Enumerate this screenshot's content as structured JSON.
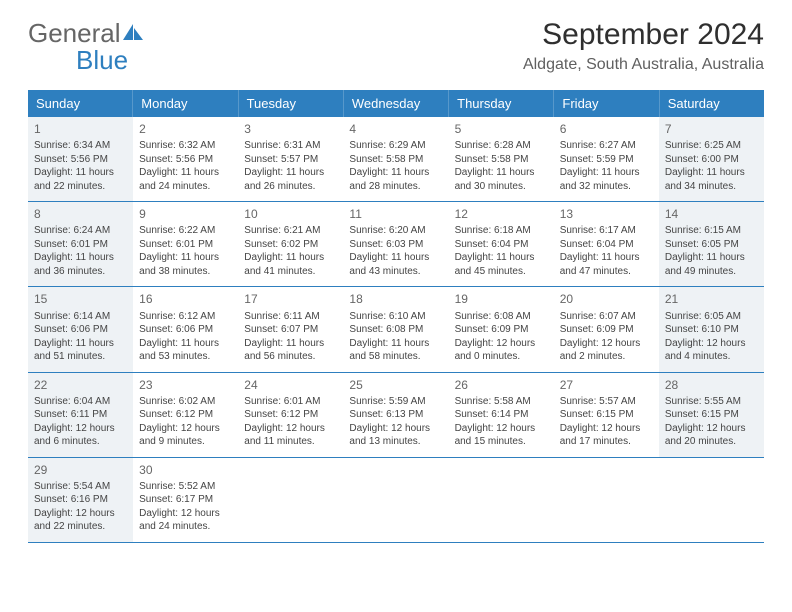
{
  "logo": {
    "text1": "General",
    "text2": "Blue"
  },
  "title": "September 2024",
  "location": "Aldgate, South Australia, Australia",
  "colors": {
    "header_bg": "#2e7fbf",
    "shade_bg": "#eef2f5",
    "border": "#2e7fbf",
    "text": "#444444",
    "title_color": "#2f2f2f"
  },
  "day_headers": [
    "Sunday",
    "Monday",
    "Tuesday",
    "Wednesday",
    "Thursday",
    "Friday",
    "Saturday"
  ],
  "weeks": [
    [
      {
        "num": "1",
        "shade": true,
        "lines": [
          "Sunrise: 6:34 AM",
          "Sunset: 5:56 PM",
          "Daylight: 11 hours",
          "and 22 minutes."
        ]
      },
      {
        "num": "2",
        "shade": false,
        "lines": [
          "Sunrise: 6:32 AM",
          "Sunset: 5:56 PM",
          "Daylight: 11 hours",
          "and 24 minutes."
        ]
      },
      {
        "num": "3",
        "shade": false,
        "lines": [
          "Sunrise: 6:31 AM",
          "Sunset: 5:57 PM",
          "Daylight: 11 hours",
          "and 26 minutes."
        ]
      },
      {
        "num": "4",
        "shade": false,
        "lines": [
          "Sunrise: 6:29 AM",
          "Sunset: 5:58 PM",
          "Daylight: 11 hours",
          "and 28 minutes."
        ]
      },
      {
        "num": "5",
        "shade": false,
        "lines": [
          "Sunrise: 6:28 AM",
          "Sunset: 5:58 PM",
          "Daylight: 11 hours",
          "and 30 minutes."
        ]
      },
      {
        "num": "6",
        "shade": false,
        "lines": [
          "Sunrise: 6:27 AM",
          "Sunset: 5:59 PM",
          "Daylight: 11 hours",
          "and 32 minutes."
        ]
      },
      {
        "num": "7",
        "shade": true,
        "lines": [
          "Sunrise: 6:25 AM",
          "Sunset: 6:00 PM",
          "Daylight: 11 hours",
          "and 34 minutes."
        ]
      }
    ],
    [
      {
        "num": "8",
        "shade": true,
        "lines": [
          "Sunrise: 6:24 AM",
          "Sunset: 6:01 PM",
          "Daylight: 11 hours",
          "and 36 minutes."
        ]
      },
      {
        "num": "9",
        "shade": false,
        "lines": [
          "Sunrise: 6:22 AM",
          "Sunset: 6:01 PM",
          "Daylight: 11 hours",
          "and 38 minutes."
        ]
      },
      {
        "num": "10",
        "shade": false,
        "lines": [
          "Sunrise: 6:21 AM",
          "Sunset: 6:02 PM",
          "Daylight: 11 hours",
          "and 41 minutes."
        ]
      },
      {
        "num": "11",
        "shade": false,
        "lines": [
          "Sunrise: 6:20 AM",
          "Sunset: 6:03 PM",
          "Daylight: 11 hours",
          "and 43 minutes."
        ]
      },
      {
        "num": "12",
        "shade": false,
        "lines": [
          "Sunrise: 6:18 AM",
          "Sunset: 6:04 PM",
          "Daylight: 11 hours",
          "and 45 minutes."
        ]
      },
      {
        "num": "13",
        "shade": false,
        "lines": [
          "Sunrise: 6:17 AM",
          "Sunset: 6:04 PM",
          "Daylight: 11 hours",
          "and 47 minutes."
        ]
      },
      {
        "num": "14",
        "shade": true,
        "lines": [
          "Sunrise: 6:15 AM",
          "Sunset: 6:05 PM",
          "Daylight: 11 hours",
          "and 49 minutes."
        ]
      }
    ],
    [
      {
        "num": "15",
        "shade": true,
        "lines": [
          "Sunrise: 6:14 AM",
          "Sunset: 6:06 PM",
          "Daylight: 11 hours",
          "and 51 minutes."
        ]
      },
      {
        "num": "16",
        "shade": false,
        "lines": [
          "Sunrise: 6:12 AM",
          "Sunset: 6:06 PM",
          "Daylight: 11 hours",
          "and 53 minutes."
        ]
      },
      {
        "num": "17",
        "shade": false,
        "lines": [
          "Sunrise: 6:11 AM",
          "Sunset: 6:07 PM",
          "Daylight: 11 hours",
          "and 56 minutes."
        ]
      },
      {
        "num": "18",
        "shade": false,
        "lines": [
          "Sunrise: 6:10 AM",
          "Sunset: 6:08 PM",
          "Daylight: 11 hours",
          "and 58 minutes."
        ]
      },
      {
        "num": "19",
        "shade": false,
        "lines": [
          "Sunrise: 6:08 AM",
          "Sunset: 6:09 PM",
          "Daylight: 12 hours",
          "and 0 minutes."
        ]
      },
      {
        "num": "20",
        "shade": false,
        "lines": [
          "Sunrise: 6:07 AM",
          "Sunset: 6:09 PM",
          "Daylight: 12 hours",
          "and 2 minutes."
        ]
      },
      {
        "num": "21",
        "shade": true,
        "lines": [
          "Sunrise: 6:05 AM",
          "Sunset: 6:10 PM",
          "Daylight: 12 hours",
          "and 4 minutes."
        ]
      }
    ],
    [
      {
        "num": "22",
        "shade": true,
        "lines": [
          "Sunrise: 6:04 AM",
          "Sunset: 6:11 PM",
          "Daylight: 12 hours",
          "and 6 minutes."
        ]
      },
      {
        "num": "23",
        "shade": false,
        "lines": [
          "Sunrise: 6:02 AM",
          "Sunset: 6:12 PM",
          "Daylight: 12 hours",
          "and 9 minutes."
        ]
      },
      {
        "num": "24",
        "shade": false,
        "lines": [
          "Sunrise: 6:01 AM",
          "Sunset: 6:12 PM",
          "Daylight: 12 hours",
          "and 11 minutes."
        ]
      },
      {
        "num": "25",
        "shade": false,
        "lines": [
          "Sunrise: 5:59 AM",
          "Sunset: 6:13 PM",
          "Daylight: 12 hours",
          "and 13 minutes."
        ]
      },
      {
        "num": "26",
        "shade": false,
        "lines": [
          "Sunrise: 5:58 AM",
          "Sunset: 6:14 PM",
          "Daylight: 12 hours",
          "and 15 minutes."
        ]
      },
      {
        "num": "27",
        "shade": false,
        "lines": [
          "Sunrise: 5:57 AM",
          "Sunset: 6:15 PM",
          "Daylight: 12 hours",
          "and 17 minutes."
        ]
      },
      {
        "num": "28",
        "shade": true,
        "lines": [
          "Sunrise: 5:55 AM",
          "Sunset: 6:15 PM",
          "Daylight: 12 hours",
          "and 20 minutes."
        ]
      }
    ],
    [
      {
        "num": "29",
        "shade": true,
        "lines": [
          "Sunrise: 5:54 AM",
          "Sunset: 6:16 PM",
          "Daylight: 12 hours",
          "and 22 minutes."
        ]
      },
      {
        "num": "30",
        "shade": false,
        "lines": [
          "Sunrise: 5:52 AM",
          "Sunset: 6:17 PM",
          "Daylight: 12 hours",
          "and 24 minutes."
        ]
      },
      {
        "empty": true
      },
      {
        "empty": true
      },
      {
        "empty": true
      },
      {
        "empty": true
      },
      {
        "empty": true
      }
    ]
  ]
}
